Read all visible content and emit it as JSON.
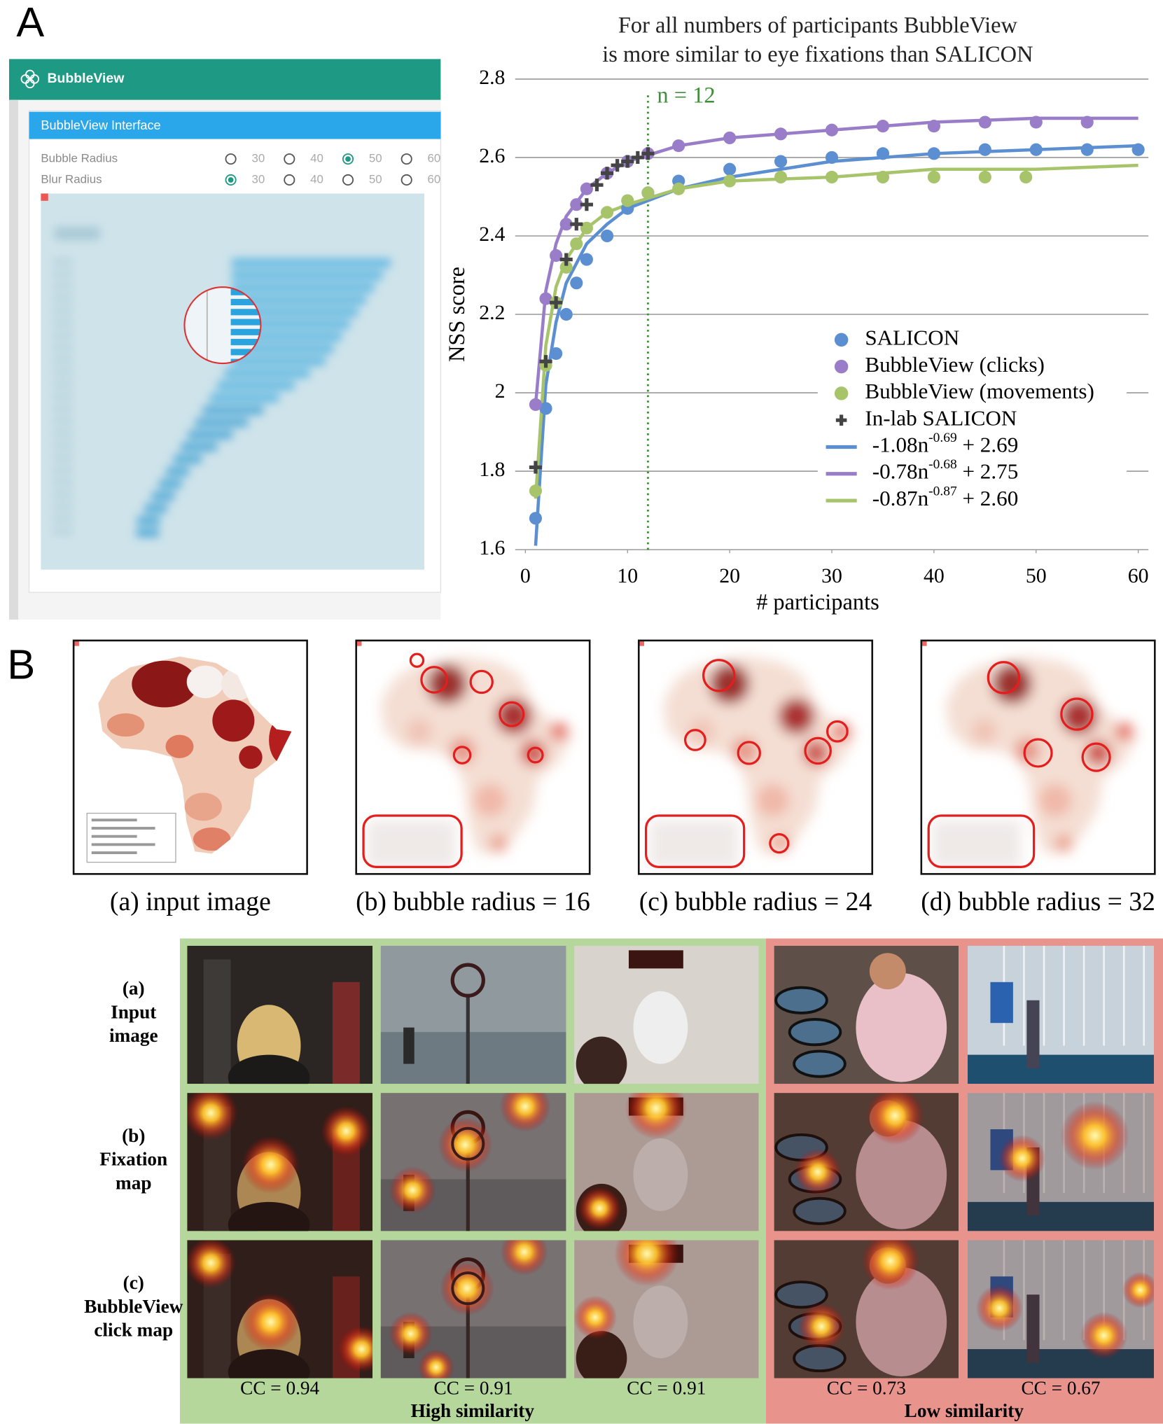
{
  "panel_a": {
    "label": "A",
    "app_title": "BubbleView",
    "card_title": "BubbleView Interface",
    "settings": [
      {
        "name": "Bubble Radius",
        "options": [
          "30",
          "40",
          "50",
          "60"
        ],
        "selected": 2
      },
      {
        "name": "Blur Radius",
        "options": [
          "30",
          "40",
          "50",
          "60"
        ],
        "selected": 0
      }
    ]
  },
  "chart_data": {
    "type": "scatter",
    "title": [
      "For all numbers of participants BubbleView",
      "is more similar to eye fixations than SALICON"
    ],
    "x_label": "# participants",
    "y_label": "NSS score",
    "xlim": [
      -1,
      61
    ],
    "ylim": [
      1.6,
      2.8
    ],
    "xticks": [
      0,
      10,
      20,
      30,
      40,
      50,
      60
    ],
    "yticks": [
      1.6,
      1.8,
      2,
      2.2,
      2.4,
      2.6,
      2.8
    ],
    "grid": true,
    "legend": "lower right",
    "annotations": [
      {
        "x": 12,
        "text": "n = 12",
        "color": "#3f8f3a"
      }
    ],
    "series": [
      {
        "name": "SALICON",
        "kind": "scatter",
        "marker": "circle",
        "color": "#5b8fd1",
        "x": [
          1,
          2,
          3,
          4,
          5,
          6,
          8,
          10,
          12,
          15,
          20,
          25,
          30,
          35,
          40,
          45,
          50,
          55,
          60
        ],
        "values": [
          1.68,
          1.96,
          2.1,
          2.2,
          2.28,
          2.34,
          2.4,
          2.47,
          2.51,
          2.54,
          2.57,
          2.59,
          2.6,
          2.61,
          2.61,
          2.62,
          2.62,
          2.62,
          2.62
        ]
      },
      {
        "name": "BubbleView (clicks)",
        "kind": "scatter",
        "marker": "circle",
        "color": "#9a7dc8",
        "x": [
          1,
          2,
          3,
          4,
          5,
          6,
          8,
          10,
          12,
          15,
          20,
          25,
          30,
          35,
          40,
          45,
          50,
          55
        ],
        "values": [
          1.97,
          2.24,
          2.35,
          2.43,
          2.48,
          2.52,
          2.56,
          2.59,
          2.61,
          2.63,
          2.65,
          2.66,
          2.67,
          2.68,
          2.68,
          2.69,
          2.69,
          2.69
        ]
      },
      {
        "name": "BubbleView (movements)",
        "kind": "scatter",
        "marker": "circle",
        "color": "#a7c46b",
        "x": [
          1,
          2,
          3,
          4,
          5,
          6,
          8,
          10,
          12,
          15,
          20,
          25,
          30,
          35,
          40,
          45,
          49
        ],
        "values": [
          1.75,
          2.07,
          2.23,
          2.32,
          2.38,
          2.42,
          2.46,
          2.49,
          2.51,
          2.52,
          2.54,
          2.55,
          2.55,
          2.55,
          2.55,
          2.55,
          2.55
        ]
      },
      {
        "name": "In-lab SALICON",
        "kind": "scatter",
        "marker": "plus",
        "color": "#444444",
        "x": [
          1,
          2,
          3,
          4,
          5,
          6,
          7,
          8,
          9,
          10,
          11,
          12
        ],
        "values": [
          1.81,
          2.08,
          2.23,
          2.34,
          2.43,
          2.48,
          2.53,
          2.56,
          2.58,
          2.59,
          2.6,
          2.61
        ]
      },
      {
        "name": {
          "base": "-1.08n",
          "exponent": "-0.69",
          "offset": "+ 2.69"
        },
        "kind": "line",
        "color": "#5b8fd1",
        "x": [
          1,
          2,
          3,
          4,
          6,
          8,
          10,
          15,
          20,
          30,
          40,
          50,
          60
        ],
        "values": [
          1.61,
          2.02,
          2.18,
          2.28,
          2.38,
          2.43,
          2.47,
          2.52,
          2.55,
          2.59,
          2.61,
          2.62,
          2.63
        ]
      },
      {
        "name": {
          "base": "-0.78n",
          "exponent": "-0.68",
          "offset": "+ 2.75"
        },
        "kind": "line",
        "color": "#9a7dc8",
        "x": [
          1,
          2,
          3,
          4,
          6,
          8,
          10,
          15,
          20,
          30,
          40,
          50,
          60
        ],
        "values": [
          1.97,
          2.26,
          2.38,
          2.45,
          2.52,
          2.56,
          2.59,
          2.63,
          2.65,
          2.67,
          2.69,
          2.7,
          2.7
        ]
      },
      {
        "name": {
          "base": "-0.87n",
          "exponent": "-0.87",
          "offset": "+ 2.60"
        },
        "kind": "line",
        "color": "#a7c46b",
        "x": [
          1,
          2,
          3,
          4,
          6,
          8,
          10,
          15,
          20,
          30,
          40,
          50,
          60
        ],
        "values": [
          1.73,
          2.12,
          2.27,
          2.34,
          2.42,
          2.46,
          2.48,
          2.52,
          2.54,
          2.55,
          2.57,
          2.57,
          2.58
        ]
      }
    ]
  },
  "panel_b": {
    "label": "B",
    "captions": [
      "(a) input image",
      "(b) bubble radius = 16",
      "(c) bubble radius = 24",
      "(d) bubble radius = 32"
    ]
  },
  "panel_c": {
    "row_labels": [
      [
        "(a)",
        "Input",
        "image"
      ],
      [
        "(b)",
        "Fixation",
        "map"
      ],
      [
        "(c)",
        "BubbleView",
        "click map"
      ]
    ],
    "cc": [
      "CC = 0.94",
      "CC = 0.91",
      "CC = 0.91",
      "CC = 0.73",
      "CC = 0.67"
    ],
    "groups": [
      "High similarity",
      "Low similarity"
    ]
  }
}
